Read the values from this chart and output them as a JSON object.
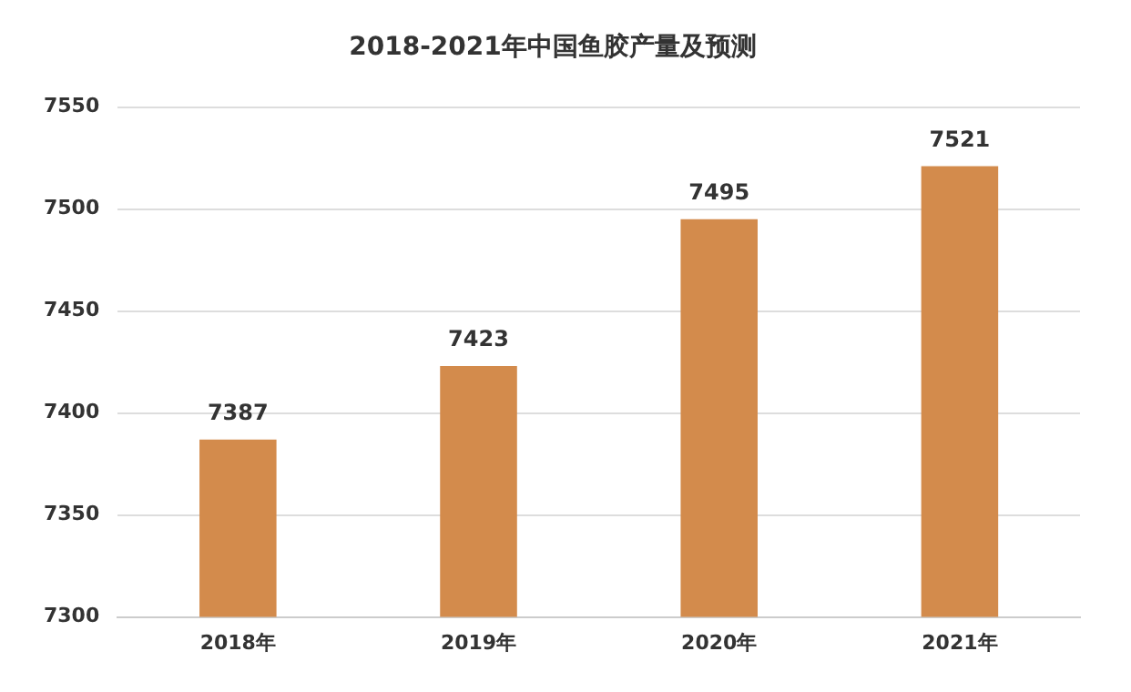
{
  "chart_data": {
    "type": "bar",
    "title": "2018-2021年中国鱼胶产量及预测",
    "categories": [
      "2018年",
      "2019年",
      "2020年",
      "2021年"
    ],
    "values": [
      7387,
      7423,
      7495,
      7521
    ],
    "color": "#d38b4c",
    "ylim": [
      7300,
      7550
    ],
    "yticks": [
      7300,
      7350,
      7400,
      7450,
      7500,
      7550
    ],
    "grid": "y",
    "data_labels": true
  }
}
